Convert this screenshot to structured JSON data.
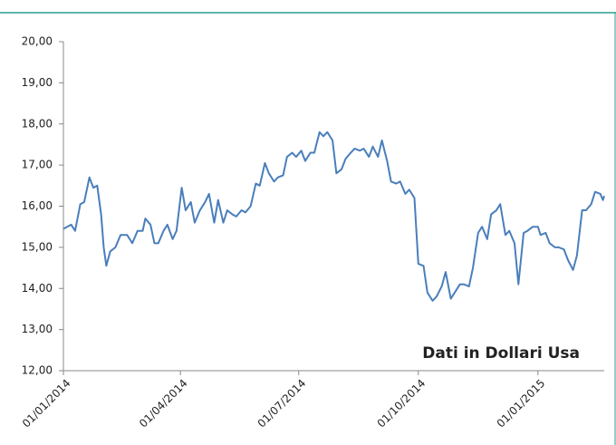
{
  "chart_data": {
    "type": "line",
    "annotation": "Dati in Dollari Usa",
    "x": [
      "2014-01-01",
      "2014-01-07",
      "2014-01-10",
      "2014-01-14",
      "2014-01-17",
      "2014-01-21",
      "2014-01-24",
      "2014-01-27",
      "2014-01-30",
      "2014-02-01",
      "2014-02-03",
      "2014-02-06",
      "2014-02-10",
      "2014-02-14",
      "2014-02-19",
      "2014-02-23",
      "2014-02-27",
      "2014-03-03",
      "2014-03-05",
      "2014-03-09",
      "2014-03-12",
      "2014-03-15",
      "2014-03-19",
      "2014-03-22",
      "2014-03-26",
      "2014-03-29",
      "2014-04-02",
      "2014-04-05",
      "2014-04-09",
      "2014-04-12",
      "2014-04-16",
      "2014-04-20",
      "2014-04-23",
      "2014-04-27",
      "2014-04-30",
      "2014-05-04",
      "2014-05-07",
      "2014-05-11",
      "2014-05-14",
      "2014-05-18",
      "2014-05-21",
      "2014-05-25",
      "2014-05-29",
      "2014-06-01",
      "2014-06-05",
      "2014-06-08",
      "2014-06-12",
      "2014-06-15",
      "2014-06-19",
      "2014-06-22",
      "2014-06-26",
      "2014-06-29",
      "2014-07-03",
      "2014-07-06",
      "2014-07-10",
      "2014-07-13",
      "2014-07-17",
      "2014-07-20",
      "2014-07-23",
      "2014-07-27",
      "2014-07-30",
      "2014-08-03",
      "2014-08-06",
      "2014-08-10",
      "2014-08-13",
      "2014-08-17",
      "2014-08-20",
      "2014-08-24",
      "2014-08-27",
      "2014-08-31",
      "2014-09-03",
      "2014-09-07",
      "2014-09-10",
      "2014-09-14",
      "2014-09-17",
      "2014-09-21",
      "2014-09-24",
      "2014-09-28",
      "2014-10-01",
      "2014-10-05",
      "2014-10-08",
      "2014-10-12",
      "2014-10-15",
      "2014-10-19",
      "2014-10-22",
      "2014-10-26",
      "2014-10-29",
      "2014-11-02",
      "2014-11-05",
      "2014-11-09",
      "2014-11-12",
      "2014-11-16",
      "2014-11-19",
      "2014-11-23",
      "2014-11-26",
      "2014-11-30",
      "2014-12-03",
      "2014-12-07",
      "2014-12-10",
      "2014-12-14",
      "2014-12-17",
      "2014-12-21",
      "2014-12-24",
      "2014-12-28",
      "2015-01-01",
      "2015-01-03",
      "2015-01-07",
      "2015-01-10",
      "2015-01-14",
      "2015-01-17",
      "2015-01-21",
      "2015-01-24",
      "2015-01-28",
      "2015-01-31",
      "2015-02-04",
      "2015-02-07",
      "2015-02-11",
      "2015-02-14",
      "2015-02-18",
      "2015-02-20",
      "2015-02-21"
    ],
    "values": [
      15.45,
      15.55,
      15.4,
      16.05,
      16.1,
      16.7,
      16.45,
      16.5,
      15.8,
      15.0,
      14.55,
      14.9,
      15.0,
      15.3,
      15.3,
      15.1,
      15.4,
      15.4,
      15.7,
      15.55,
      15.1,
      15.1,
      15.4,
      15.55,
      15.2,
      15.4,
      16.45,
      15.9,
      16.1,
      15.6,
      15.9,
      16.1,
      16.3,
      15.6,
      16.15,
      15.6,
      15.9,
      15.8,
      15.75,
      15.9,
      15.85,
      16.0,
      16.55,
      16.5,
      17.05,
      16.8,
      16.6,
      16.7,
      16.75,
      17.2,
      17.3,
      17.2,
      17.35,
      17.1,
      17.3,
      17.3,
      17.8,
      17.7,
      17.8,
      17.6,
      16.8,
      16.9,
      17.15,
      17.3,
      17.4,
      17.35,
      17.4,
      17.2,
      17.45,
      17.2,
      17.6,
      17.1,
      16.6,
      16.55,
      16.6,
      16.3,
      16.4,
      16.2,
      14.6,
      14.55,
      13.9,
      13.7,
      13.8,
      14.05,
      14.4,
      13.75,
      13.9,
      14.1,
      14.1,
      14.05,
      14.5,
      15.35,
      15.5,
      15.2,
      15.8,
      15.9,
      16.05,
      15.3,
      15.4,
      15.1,
      14.1,
      15.35,
      15.4,
      15.5,
      15.5,
      15.3,
      15.35,
      15.1,
      15.0,
      15.0,
      14.95,
      14.7,
      14.45,
      14.8,
      15.9,
      15.9,
      16.05,
      16.35,
      16.3,
      16.15,
      16.25
    ],
    "color": "#4a7ebb",
    "xlim": [
      "2014-01-01",
      "2015-02-21"
    ],
    "xticks": [
      {
        "value": "2014-01-01",
        "label": "01/01/2014"
      },
      {
        "value": "2014-04-01",
        "label": "01/04/2014"
      },
      {
        "value": "2014-07-01",
        "label": "01/07/2014"
      },
      {
        "value": "2014-10-01",
        "label": "01/10/2014"
      },
      {
        "value": "2015-01-01",
        "label": "01/01/2015"
      }
    ],
    "ylim": [
      12,
      20
    ],
    "yticks": [
      {
        "value": 12,
        "label": "12,00"
      },
      {
        "value": 13,
        "label": "13,00"
      },
      {
        "value": 14,
        "label": "14,00"
      },
      {
        "value": 15,
        "label": "15,00"
      },
      {
        "value": 16,
        "label": "16,00"
      },
      {
        "value": 17,
        "label": "17,00"
      },
      {
        "value": 18,
        "label": "18,00"
      },
      {
        "value": 19,
        "label": "19,00"
      },
      {
        "value": 20,
        "label": "20,00"
      }
    ],
    "grid": false
  }
}
